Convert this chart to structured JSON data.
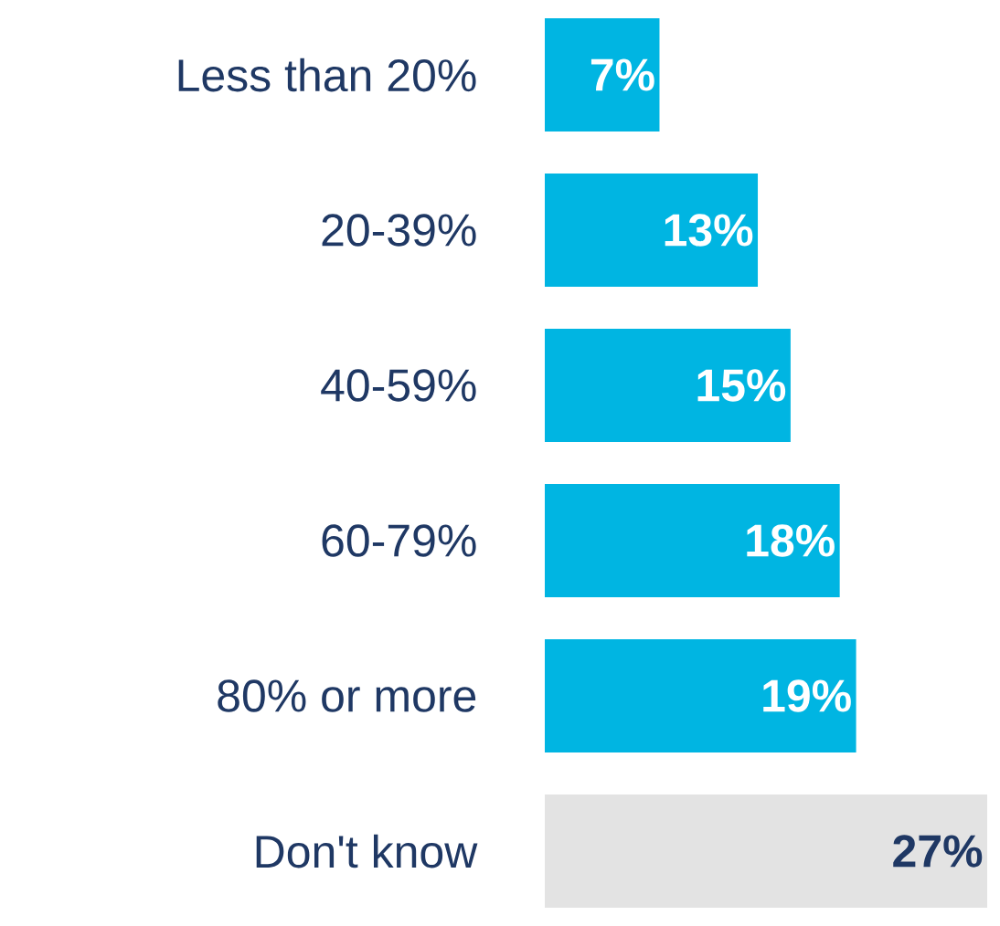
{
  "chart_data": {
    "type": "bar",
    "orientation": "horizontal",
    "categories": [
      "Less than 20%",
      "20-39%",
      "40-59%",
      "60-79%",
      "80% or more",
      "Don't know"
    ],
    "values": [
      7,
      13,
      15,
      18,
      19,
      27
    ],
    "colors": [
      "#00b5e2",
      "#00b5e2",
      "#00b5e2",
      "#00b5e2",
      "#00b5e2",
      "#e3e3e3"
    ],
    "value_labels": [
      "7%",
      "13%",
      "15%",
      "18%",
      "19%",
      "27%"
    ]
  }
}
